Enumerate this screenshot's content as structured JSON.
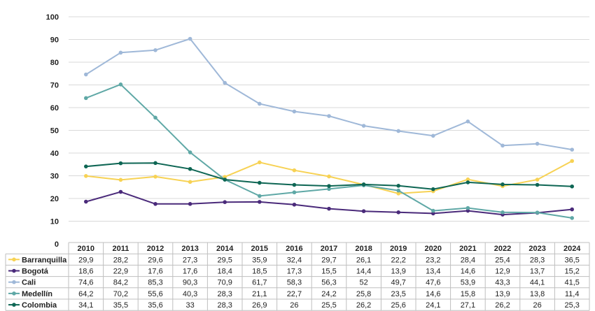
{
  "chart_data": {
    "type": "line",
    "title": "",
    "xlabel": "",
    "ylabel": "",
    "ylim": [
      0,
      100
    ],
    "yticks": [
      "0",
      "10",
      "20",
      "30",
      "40",
      "50",
      "60",
      "70",
      "80",
      "90",
      "100"
    ],
    "grid": true,
    "legend": "data-table-bottom",
    "categories": [
      "2010",
      "2011",
      "2012",
      "2013",
      "2014",
      "2015",
      "2016",
      "2017",
      "2018",
      "2019",
      "2020",
      "2021",
      "2022",
      "2023",
      "2024"
    ],
    "series": [
      {
        "name": "Barranquilla",
        "color": "#f7d254",
        "values": [
          29.9,
          28.2,
          29.6,
          27.3,
          29.5,
          35.9,
          32.4,
          29.7,
          26.1,
          22.2,
          23.2,
          28.4,
          25.4,
          28.3,
          36.5
        ],
        "labels": [
          "29,9",
          "28,2",
          "29,6",
          "27,3",
          "29,5",
          "35,9",
          "32,4",
          "29,7",
          "26,1",
          "22,2",
          "23,2",
          "28,4",
          "25,4",
          "28,3",
          "36,5"
        ]
      },
      {
        "name": "Bogotá",
        "color": "#4a2a7a",
        "values": [
          18.6,
          22.9,
          17.6,
          17.6,
          18.4,
          18.5,
          17.3,
          15.5,
          14.4,
          13.9,
          13.4,
          14.6,
          12.9,
          13.7,
          15.2
        ],
        "labels": [
          "18,6",
          "22,9",
          "17,6",
          "17,6",
          "18,4",
          "18,5",
          "17,3",
          "15,5",
          "14,4",
          "13,9",
          "13,4",
          "14,6",
          "12,9",
          "13,7",
          "15,2"
        ]
      },
      {
        "name": "Cali",
        "color": "#9fb8d8",
        "values": [
          74.6,
          84.2,
          85.3,
          90.3,
          70.9,
          61.7,
          58.3,
          56.3,
          52,
          49.7,
          47.6,
          53.9,
          43.3,
          44.1,
          41.5
        ],
        "labels": [
          "74,6",
          "84,2",
          "85,3",
          "90,3",
          "70,9",
          "61,7",
          "58,3",
          "56,3",
          "52",
          "49,7",
          "47,6",
          "53,9",
          "43,3",
          "44,1",
          "41,5"
        ]
      },
      {
        "name": "Medellín",
        "color": "#5fa8a6",
        "values": [
          64.2,
          70.2,
          55.6,
          40.3,
          28.3,
          21.1,
          22.7,
          24.2,
          25.8,
          23.5,
          14.6,
          15.8,
          13.9,
          13.8,
          11.4
        ],
        "labels": [
          "64,2",
          "70,2",
          "55,6",
          "40,3",
          "28,3",
          "21,1",
          "22,7",
          "24,2",
          "25,8",
          "23,5",
          "14,6",
          "15,8",
          "13,9",
          "13,8",
          "11,4"
        ]
      },
      {
        "name": "Colombia",
        "color": "#0e6654",
        "values": [
          34.1,
          35.5,
          35.6,
          33,
          28.3,
          26.9,
          26,
          25.5,
          26.2,
          25.6,
          24.1,
          27.1,
          26.2,
          26,
          25.3
        ],
        "labels": [
          "34,1",
          "35,5",
          "35,6",
          "33",
          "28,3",
          "26,9",
          "26",
          "25,5",
          "26,2",
          "25,6",
          "24,1",
          "27,1",
          "26,2",
          "26",
          "25,3"
        ]
      }
    ]
  }
}
